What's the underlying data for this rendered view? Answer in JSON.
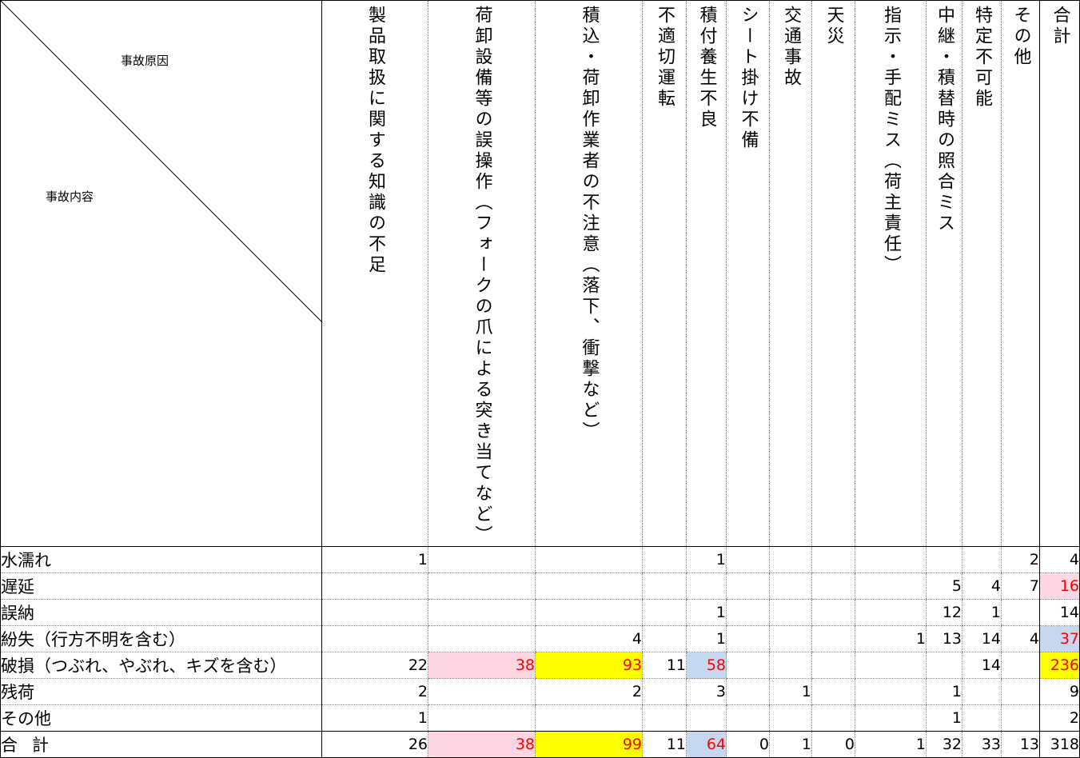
{
  "corner": {
    "cause_label": "事故原因",
    "content_label": "事故内容"
  },
  "columns": [
    "製品取扱に関する知識の不足",
    "荷卸設備等の誤操作（フォークの爪による突き当てなど）",
    "積込・荷卸作業者の不注意（落下、衝撃など）",
    "不適切運転",
    "積付養生不良",
    "シート掛け不備",
    "交通事故",
    "天災",
    "指示・手配ミス（荷主責任）",
    "中継・積替時の照合ミス",
    "特定不可能",
    "その他",
    "合計"
  ],
  "rows": [
    {
      "label": "水濡れ",
      "values": [
        "1",
        "",
        "",
        "",
        "1",
        "",
        "",
        "",
        "",
        "",
        "",
        "2",
        "4"
      ]
    },
    {
      "label": "遅延",
      "values": [
        "",
        "",
        "",
        "",
        "",
        "",
        "",
        "",
        "",
        "5",
        "4",
        "7",
        "16"
      ]
    },
    {
      "label": "誤納",
      "values": [
        "",
        "",
        "",
        "",
        "1",
        "",
        "",
        "",
        "",
        "12",
        "1",
        "",
        "14"
      ]
    },
    {
      "label": "紛失（行方不明を含む）",
      "values": [
        "",
        "",
        "4",
        "",
        "1",
        "",
        "",
        "",
        "1",
        "13",
        "14",
        "4",
        "37"
      ]
    },
    {
      "label": "破損（つぶれ、やぶれ、キズを含む）",
      "values": [
        "22",
        "38",
        "93",
        "11",
        "58",
        "",
        "",
        "",
        "",
        "",
        "14",
        "",
        "236"
      ]
    },
    {
      "label": "残荷",
      "values": [
        "2",
        "",
        "2",
        "",
        "3",
        "",
        "1",
        "",
        "",
        "1",
        "",
        "",
        "9"
      ]
    },
    {
      "label": "その他",
      "values": [
        "1",
        "",
        "",
        "",
        "",
        "",
        "",
        "",
        "",
        "1",
        "",
        "",
        "2"
      ]
    }
  ],
  "total_row": {
    "label": "合計",
    "values": [
      "26",
      "38",
      "99",
      "11",
      "64",
      "0",
      "1",
      "0",
      "1",
      "32",
      "33",
      "13",
      "318"
    ]
  },
  "highlights": [
    {
      "row": 1,
      "col": 12,
      "bg": "#ffd7e3",
      "color": "#ff0000"
    },
    {
      "row": 3,
      "col": 12,
      "bg": "#c6d7f0",
      "color": "#ff0000"
    },
    {
      "row": 4,
      "col": 1,
      "bg": "#ffd7e3",
      "color": "#ff0000"
    },
    {
      "row": 4,
      "col": 2,
      "bg": "#ffff00",
      "color": "#ff0000"
    },
    {
      "row": 4,
      "col": 4,
      "bg": "#c6d7f0",
      "color": "#ff0000"
    },
    {
      "row": 4,
      "col": 12,
      "bg": "#ffff00",
      "color": "#ff0000"
    },
    {
      "row": "total",
      "col": 1,
      "bg": "#ffd7e3",
      "color": "#ff0000"
    },
    {
      "row": "total",
      "col": 2,
      "bg": "#ffff00",
      "color": "#ff0000"
    },
    {
      "row": "total",
      "col": 4,
      "bg": "#c6d7f0",
      "color": "#ff0000"
    }
  ]
}
